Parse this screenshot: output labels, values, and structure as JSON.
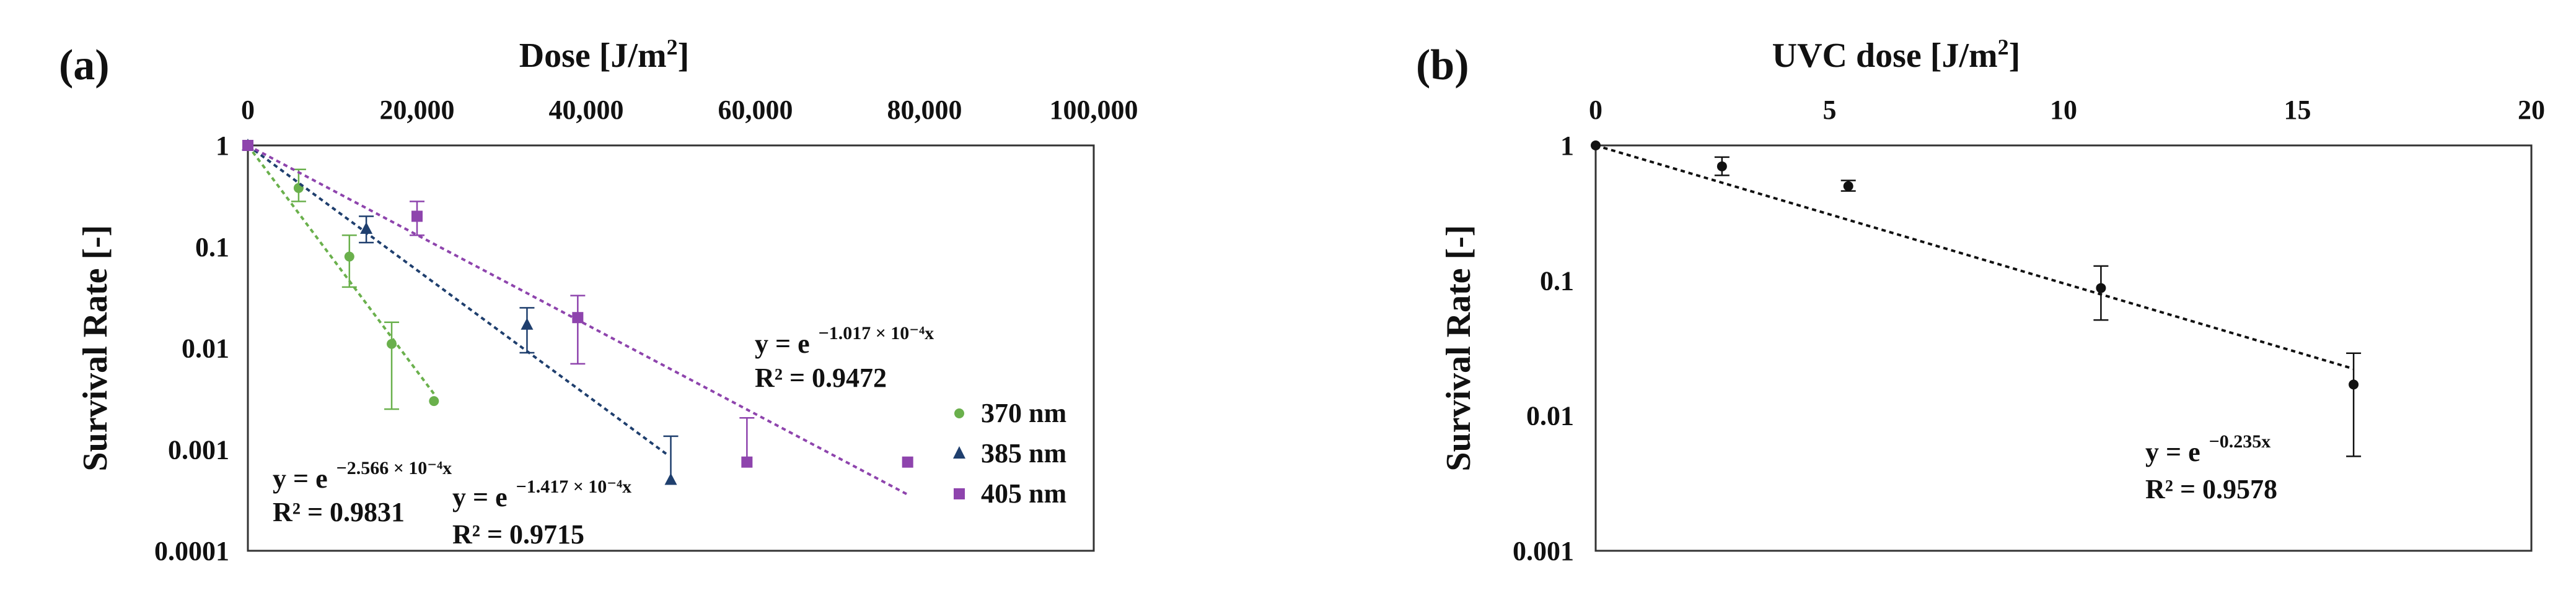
{
  "chart_data": [
    {
      "panel": "(a)",
      "type": "scatter",
      "title": "",
      "xlabel": "Dose [J/m²]",
      "xlabel_parts": [
        "Dose [J/m",
        "2",
        "]"
      ],
      "ylabel": "Survival Rate [-]",
      "x_ticks": [
        0,
        20000,
        40000,
        60000,
        80000,
        100000
      ],
      "x_tick_labels": [
        "0",
        "20,000",
        "40,000",
        "60,000",
        "80,000",
        "100,000"
      ],
      "xlim": [
        0,
        100000
      ],
      "y_scale": "log",
      "ylim": [
        0.0001,
        1
      ],
      "y_ticks": [
        1,
        0.1,
        0.01,
        0.001,
        0.0001
      ],
      "y_tick_labels": [
        "1",
        "0.1",
        "0.01",
        "0.001",
        "0.0001"
      ],
      "grid": false,
      "legend_position": "right",
      "series": [
        {
          "name": "370 nm",
          "color": "#6ab04c",
          "marker": "circle",
          "x": [
            0,
            6000,
            12000,
            17000,
            22000
          ],
          "y": [
            1,
            0.38,
            0.08,
            0.011,
            0.003
          ],
          "err_up": [
            0,
            0.2,
            0.05,
            0.007,
            0
          ],
          "err_down": [
            0,
            0.1,
            0.04,
            0.0085,
            0
          ],
          "fit": {
            "k": 0.0002566,
            "x_end": 22000
          },
          "eq_base": "y = e",
          "eq_exp": "−2.566 × 10⁻⁴x",
          "r2": "R² = 0.9831"
        },
        {
          "name": "385 nm",
          "color": "#1f3f6e",
          "marker": "triangle",
          "x": [
            0,
            14000,
            33000,
            50000
          ],
          "y": [
            1,
            0.15,
            0.017,
            0.0005
          ],
          "err_up": [
            0,
            0.05,
            0.008,
            0.00085
          ],
          "err_down": [
            0,
            0.04,
            0.008,
            0
          ],
          "fit": {
            "k": 0.0001417,
            "x_end": 49500
          },
          "eq_base": "y = e",
          "eq_exp": "−1.417 × 10⁻⁴x",
          "r2": "R² = 0.9715"
        },
        {
          "name": "405 nm",
          "color": "#8e44ad",
          "marker": "square",
          "x": [
            0,
            20000,
            39000,
            59000,
            78000
          ],
          "y": [
            1,
            0.2,
            0.02,
            0.00075,
            0.00075
          ],
          "err_up": [
            0,
            0.08,
            0.013,
            0.0013,
            0
          ],
          "err_down": [
            0,
            0.07,
            0.013,
            0,
            0
          ],
          "fit": {
            "k": 0.0001017,
            "x_end": 78000
          },
          "eq_base": "y = e",
          "eq_exp": "−1.017 × 10⁻⁴x",
          "r2": "R² = 0.9472"
        }
      ]
    },
    {
      "panel": "(b)",
      "type": "scatter",
      "title": "",
      "xlabel": "UVC dose [J/m²]",
      "xlabel_parts": [
        "UVC dose [J/m",
        "2",
        "]"
      ],
      "ylabel": "Survival Rate [-]",
      "x_ticks": [
        0,
        5,
        10,
        15,
        20
      ],
      "x_tick_labels": [
        "0",
        "5",
        "10",
        "15",
        "20"
      ],
      "xlim": [
        0,
        20
      ],
      "y_scale": "log",
      "ylim": [
        0.001,
        1
      ],
      "y_ticks": [
        1,
        0.1,
        0.01,
        0.001
      ],
      "y_tick_labels": [
        "1",
        "0.1",
        "0.01",
        "0.001"
      ],
      "grid": false,
      "series": [
        {
          "color": "#111111",
          "marker": "circle",
          "x": [
            0,
            2.7,
            5.4,
            10.8,
            16.2
          ],
          "y": [
            1,
            0.7,
            0.5,
            0.088,
            0.017
          ],
          "err_up": [
            0,
            0.12,
            0.05,
            0.04,
            0.012
          ],
          "err_down": [
            0,
            0.1,
            0.04,
            0.037,
            0.012
          ],
          "fit": {
            "k": 0.235,
            "x_end": 16.2
          },
          "eq_base": "y = e",
          "eq_exp": "−0.235x",
          "r2": "R² = 0.9578"
        }
      ]
    }
  ]
}
